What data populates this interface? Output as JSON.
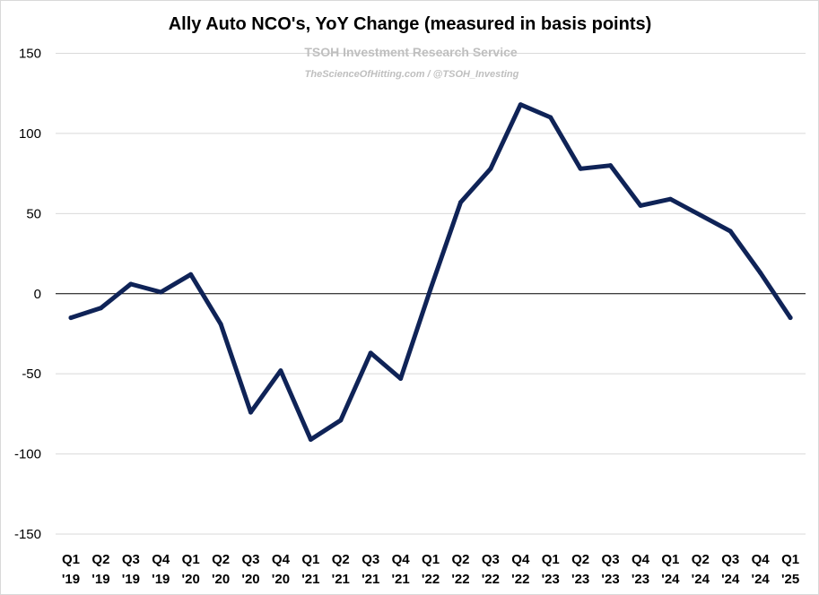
{
  "chart_data": {
    "type": "line",
    "title": "Ally Auto NCO's, YoY Change (measured in basis points)",
    "watermark": {
      "line1": "TSOH Investment Research Service",
      "line2": "TheScienceOfHitting.com / @TSOH_Investing"
    },
    "xlabel": "",
    "ylabel": "",
    "ylim": [
      -150,
      150
    ],
    "yticks": [
      150,
      100,
      50,
      0,
      -50,
      -100,
      -150
    ],
    "grid": true,
    "categories": [
      [
        "Q1",
        "'19"
      ],
      [
        "Q2",
        "'19"
      ],
      [
        "Q3",
        "'19"
      ],
      [
        "Q4",
        "'19"
      ],
      [
        "Q1",
        "'20"
      ],
      [
        "Q2",
        "'20"
      ],
      [
        "Q3",
        "'20"
      ],
      [
        "Q4",
        "'20"
      ],
      [
        "Q1",
        "'21"
      ],
      [
        "Q2",
        "'21"
      ],
      [
        "Q3",
        "'21"
      ],
      [
        "Q4",
        "'21"
      ],
      [
        "Q1",
        "'22"
      ],
      [
        "Q2",
        "'22"
      ],
      [
        "Q3",
        "'22"
      ],
      [
        "Q4",
        "'22"
      ],
      [
        "Q1",
        "'23"
      ],
      [
        "Q2",
        "'23"
      ],
      [
        "Q3",
        "'23"
      ],
      [
        "Q4",
        "'23"
      ],
      [
        "Q1",
        "'24"
      ],
      [
        "Q2",
        "'24"
      ],
      [
        "Q3",
        "'24"
      ],
      [
        "Q4",
        "'24"
      ],
      [
        "Q1",
        "'25"
      ]
    ],
    "series": [
      {
        "color": "#0f2357",
        "values": [
          -15,
          -9,
          6,
          1,
          12,
          -19,
          -74,
          -48,
          -91,
          -79,
          -37,
          -53,
          3,
          57,
          78,
          118,
          110,
          78,
          80,
          55,
          59,
          49,
          39,
          13,
          -15
        ]
      }
    ]
  }
}
